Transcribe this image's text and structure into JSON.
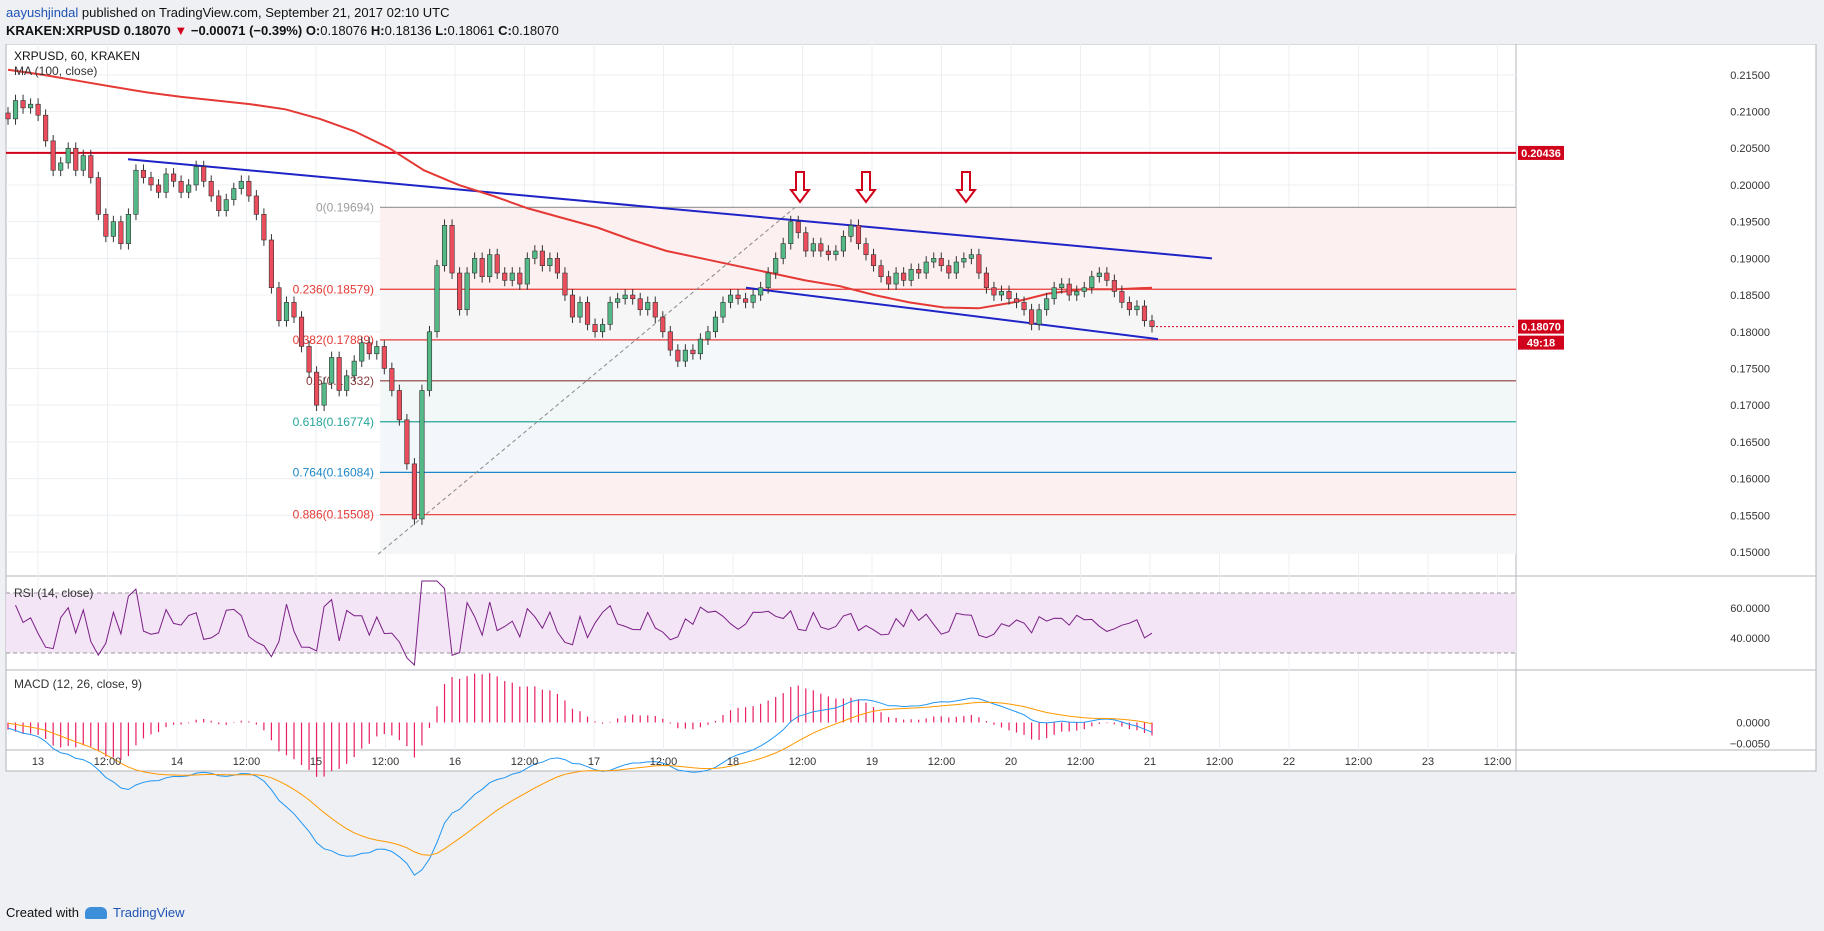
{
  "header": {
    "user": "aayushjindal",
    "published": " published on TradingView.com, September 21, 2017 02:10 UTC",
    "symbol": "KRAKEN:XRPUSD",
    "last": "0.18070",
    "change": "−0.00071 (−0.39%)",
    "ohlc": {
      "o": "0.18076",
      "h": "0.18136",
      "l": "0.18061",
      "c": "0.18070"
    }
  },
  "chart_labels": {
    "title": "XRPUSD, 60, KRAKEN",
    "ma": "MA (100, close)",
    "rsi": "RSI (14, close)",
    "macd": "MACD (12, 26, close, 9)"
  },
  "footer": {
    "created": "Created with",
    "brand": "TradingView"
  },
  "colors": {
    "up": "#53b987",
    "down": "#eb4d5c",
    "ma": "#e53935",
    "trend": "#1f24c7",
    "rsi": "#7a1f86",
    "accent": "#d0021b"
  },
  "chart_data": {
    "type": "candlestick",
    "interval": "60",
    "ylim": [
      0.147,
      0.2192
    ],
    "price_ticks": [
      "0.21500",
      "0.21000",
      "0.20500",
      "0.20000",
      "0.19500",
      "0.19000",
      "0.18500",
      "0.18000",
      "0.17500",
      "0.17000",
      "0.16500",
      "0.16000",
      "0.15500",
      "0.15000"
    ],
    "x_labels": [
      "13",
      "12:00",
      "14",
      "12:00",
      "15",
      "12:00",
      "16",
      "12:00",
      "17",
      "12:00",
      "18",
      "12:00",
      "19",
      "12:00",
      "20",
      "12:00",
      "21",
      "12:00",
      "22",
      "12:00",
      "23",
      "12:00"
    ],
    "last_price": "0.18070",
    "countdown": "49:18",
    "resistance": {
      "value": 0.20436,
      "label": "0.20436"
    },
    "fibonacci": [
      {
        "label": "0(0.19694)",
        "value": 0.19694,
        "color": "#9e9e9e"
      },
      {
        "label": "0.236(0.18579)",
        "value": 0.18579,
        "color": "#e53935"
      },
      {
        "label": "0.382(0.17889)",
        "value": 0.17889,
        "color": "#e53935"
      },
      {
        "label": "0.5(0.17332)",
        "value": 0.17332,
        "color": "#8b3a3a"
      },
      {
        "label": "0.618(0.16774)",
        "value": 0.16774,
        "color": "#26a69a"
      },
      {
        "label": "0.764(0.16084)",
        "value": 0.16084,
        "color": "#1e88c8"
      },
      {
        "label": "0.886(0.15508)",
        "value": 0.15508,
        "color": "#e53935"
      }
    ],
    "fib_swing": {
      "low": 0.1497,
      "high": 0.19694
    },
    "candle_closes": [
      0.209,
      0.2115,
      0.2105,
      0.211,
      0.2095,
      0.206,
      0.202,
      0.203,
      0.205,
      0.202,
      0.204,
      0.201,
      0.196,
      0.193,
      0.195,
      0.192,
      0.196,
      0.202,
      0.201,
      0.2,
      0.199,
      0.2015,
      0.2005,
      0.199,
      0.2,
      0.2025,
      0.2005,
      0.1985,
      0.1965,
      0.198,
      0.1995,
      0.2005,
      0.1985,
      0.196,
      0.1925,
      0.186,
      0.1815,
      0.184,
      0.182,
      0.178,
      0.1745,
      0.17,
      0.173,
      0.1765,
      0.172,
      0.174,
      0.176,
      0.1785,
      0.177,
      0.178,
      0.175,
      0.172,
      0.168,
      0.162,
      0.1545,
      0.172,
      0.18,
      0.189,
      0.1945,
      0.188,
      0.183,
      0.188,
      0.19,
      0.1875,
      0.1905,
      0.188,
      0.187,
      0.188,
      0.1865,
      0.19,
      0.191,
      0.189,
      0.19,
      0.188,
      0.185,
      0.182,
      0.184,
      0.181,
      0.18,
      0.181,
      0.184,
      0.1845,
      0.185,
      0.1845,
      0.183,
      0.184,
      0.182,
      0.18,
      0.1775,
      0.176,
      0.1775,
      0.177,
      0.179,
      0.18,
      0.182,
      0.184,
      0.185,
      0.1845,
      0.184,
      0.185,
      0.186,
      0.188,
      0.19,
      0.192,
      0.195,
      0.1935,
      0.191,
      0.192,
      0.191,
      0.1905,
      0.191,
      0.193,
      0.1945,
      0.192,
      0.1905,
      0.189,
      0.1875,
      0.1865,
      0.188,
      0.187,
      0.1885,
      0.188,
      0.1895,
      0.19,
      0.189,
      0.188,
      0.1895,
      0.19,
      0.1905,
      0.188,
      0.186,
      0.185,
      0.1855,
      0.1845,
      0.184,
      0.183,
      0.181,
      0.183,
      0.1845,
      0.186,
      0.1865,
      0.185,
      0.1855,
      0.186,
      0.1875,
      0.188,
      0.187,
      0.1855,
      0.184,
      0.183,
      0.1835,
      0.1815,
      0.1807
    ],
    "ma100": [
      0.2157,
      0.215,
      0.2142,
      0.2134,
      0.2126,
      0.212,
      0.2115,
      0.211,
      0.2103,
      0.209,
      0.2073,
      0.205,
      0.202,
      0.2,
      0.1985,
      0.1968,
      0.1955,
      0.1942,
      0.1925,
      0.191,
      0.19,
      0.189,
      0.188,
      0.187,
      0.1862,
      0.185,
      0.184,
      0.1833,
      0.1832,
      0.184,
      0.1852,
      0.1858,
      0.1858,
      0.186
    ],
    "trendlines": [
      {
        "name": "upper",
        "from": [
          0.2035
        ],
        "to": [
          0.19
        ]
      },
      {
        "name": "lower",
        "from": [
          0.186
        ],
        "to": [
          0.179
        ]
      }
    ],
    "rsi": {
      "levels": [
        70,
        30
      ],
      "ticks": [
        "60.0000",
        "40.0000"
      ],
      "last": 36
    },
    "macd": {
      "ticks": [
        "0.0000",
        "−0.0050"
      ]
    }
  }
}
